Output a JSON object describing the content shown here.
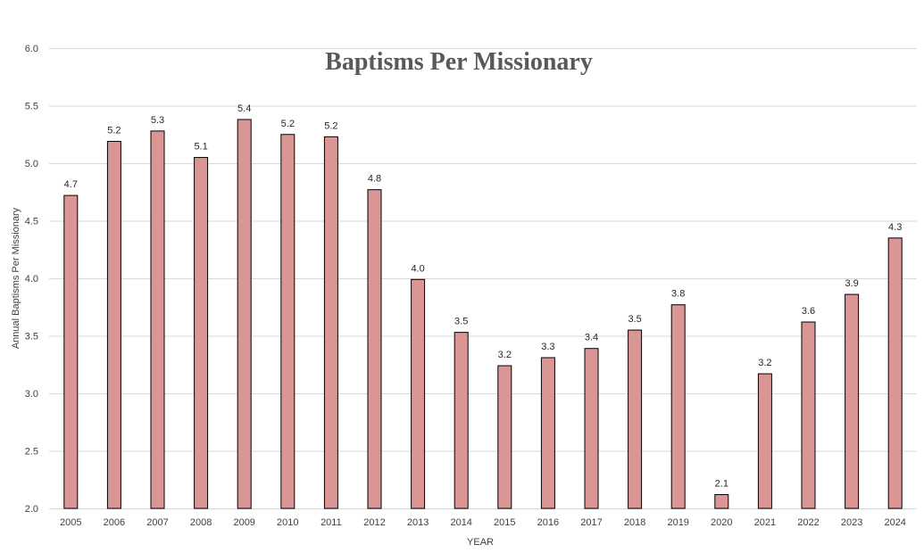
{
  "chart_data": {
    "type": "bar",
    "title": "Baptisms Per Missionary",
    "xlabel": "YEAR",
    "ylabel": "Annual Baptisms Per Missionary",
    "categories": [
      "2005",
      "2006",
      "2007",
      "2008",
      "2009",
      "2010",
      "2011",
      "2012",
      "2013",
      "2014",
      "2015",
      "2016",
      "2017",
      "2018",
      "2019",
      "2020",
      "2021",
      "2022",
      "2023",
      "2024"
    ],
    "values": [
      4.72,
      5.19,
      5.28,
      5.05,
      5.38,
      5.25,
      5.23,
      4.77,
      3.99,
      3.53,
      3.24,
      3.31,
      3.39,
      3.55,
      3.77,
      2.12,
      3.17,
      3.62,
      3.86,
      4.35
    ],
    "data_labels": [
      "4.7",
      "5.2",
      "5.3",
      "5.1",
      "5.4",
      "5.2",
      "5.2",
      "4.8",
      "4.0",
      "3.5",
      "3.2",
      "3.3",
      "3.4",
      "3.5",
      "3.8",
      "2.1",
      "3.2",
      "3.6",
      "3.9",
      "4.3"
    ],
    "ylim": [
      2.0,
      6.0
    ],
    "y_ticks": [
      "2.0",
      "2.5",
      "3.0",
      "3.5",
      "4.0",
      "4.5",
      "5.0",
      "5.5",
      "6.0"
    ],
    "grid": true,
    "legend": "none",
    "bar_color": "#da9694",
    "bar_outline": "#000000"
  }
}
